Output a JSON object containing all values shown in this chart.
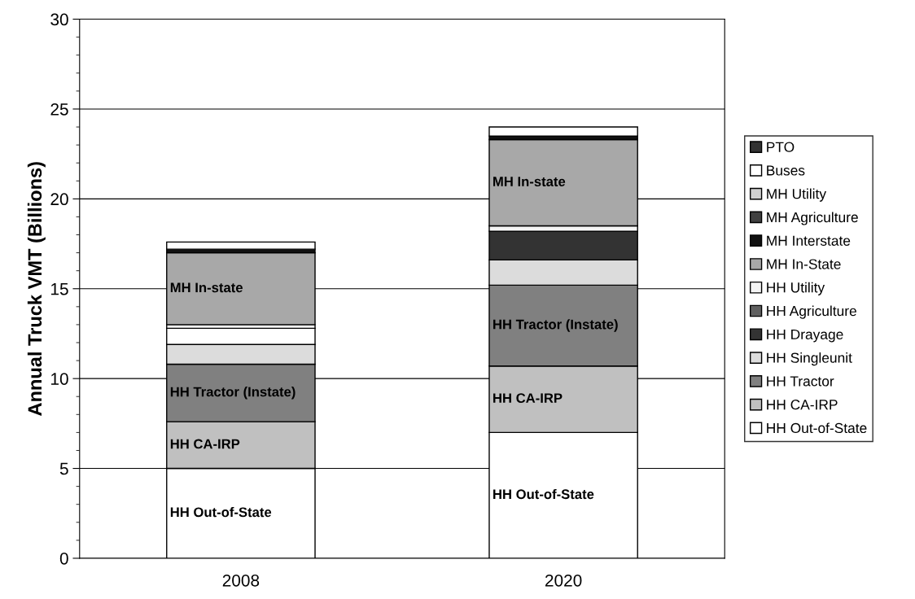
{
  "chart_data": {
    "type": "bar",
    "stacked": true,
    "ylabel": "Annual Truck VMT (Billions)",
    "categories": [
      "2008",
      "2020"
    ],
    "series": [
      {
        "name": "HH Out-of-State",
        "color": "#ffffff",
        "values": [
          5.0,
          7.0
        ],
        "value_labels": [
          "HH Out-of-State",
          "HH Out-of-State"
        ]
      },
      {
        "name": "HH CA-IRP",
        "color": "#c0c0c0",
        "values": [
          2.6,
          3.7
        ],
        "value_labels": [
          "HH CA-IRP",
          "HH CA-IRP"
        ]
      },
      {
        "name": "HH Tractor",
        "color": "#808080",
        "values": [
          3.2,
          4.5
        ],
        "value_labels": [
          "HH Tractor (Instate)",
          "HH Tractor (Instate)"
        ]
      },
      {
        "name": "HH Singleunit",
        "color": "#dcdcdc",
        "values": [
          1.1,
          1.4
        ]
      },
      {
        "name": "HH Drayage",
        "color": "#333333",
        "colors": [
          "#ffffff",
          "#333333"
        ],
        "values": [
          0.9,
          1.6
        ]
      },
      {
        "name": "HH Agriculture",
        "color": "#606060",
        "values": [
          0,
          0
        ]
      },
      {
        "name": "HH Utility",
        "color": "#f4f4f4",
        "values": [
          0.2,
          0.3
        ]
      },
      {
        "name": "MH In-State",
        "color": "#a8a8a8",
        "values": [
          4.0,
          4.8
        ],
        "value_labels": [
          "MH In-state",
          "MH In-state"
        ]
      },
      {
        "name": "MH Interstate",
        "color": "#111111",
        "values": [
          0.2,
          0.2
        ]
      },
      {
        "name": "MH Agriculture",
        "color": "#404040",
        "values": [
          0,
          0
        ]
      },
      {
        "name": "MH Utility",
        "color": "#d0d0d0",
        "values": [
          0,
          0
        ]
      },
      {
        "name": "Buses",
        "color": "#ffffff",
        "values": [
          0.4,
          0.5
        ]
      },
      {
        "name": "PTO",
        "color": "#333333",
        "values": [
          0,
          0
        ]
      }
    ],
    "ylim": [
      0,
      30
    ],
    "yticks": [
      0,
      5,
      10,
      15,
      20,
      25,
      30
    ],
    "grid": "y",
    "legend": "right"
  }
}
